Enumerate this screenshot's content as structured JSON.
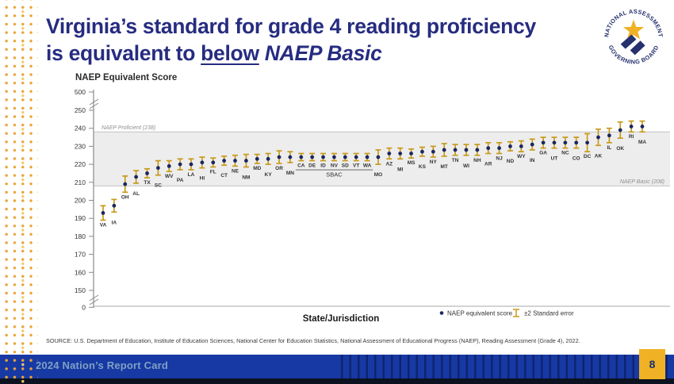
{
  "slide": {
    "title_line1": "Virginia’s standard for grade 4 reading proficiency",
    "title_line2_prefix": "is equivalent to ",
    "title_line2_underlined": "below",
    "title_line2_italic": " NAEP Basic",
    "source_text": "SOURCE: U.S. Department of Education, Institute of Education Sciences, National Center for Education Statistics, National Assessment of Educational Progress (NAEP), Reading Assessment (Grade 4), 2022.",
    "footer_text": "2024 Nation’s Report Card",
    "page_number": "8",
    "logo": {
      "top_arc": "NATIONAL ASSESSMENT",
      "bottom_arc": "GOVERNING BOARD"
    }
  },
  "colors": {
    "title_navy": "#262C80",
    "error_bar_gold": "#C79A1C",
    "point_navy": "#1C2660",
    "band_gray": "#EDEDED",
    "footer_blue": "#1739A4",
    "footer_text_blue": "#7FA0C2",
    "page_box_gold": "#F0B125",
    "dots_gold": "#EAA438"
  },
  "chart_data": {
    "type": "scatter",
    "title": "NAEP Equivalent Score",
    "ylabel": "NAEP Equivalent Score",
    "xlabel": "State/Jurisdiction",
    "y_ticks": [
      500,
      250,
      240,
      230,
      220,
      210,
      200,
      190,
      180,
      170,
      160,
      150,
      0
    ],
    "axis_breaks": true,
    "grid": false,
    "band": {
      "from": 208,
      "to": 238
    },
    "reference_lines": [
      {
        "label": "NAEP Proficient (238)",
        "value": 238
      },
      {
        "label": "NAEP Basic (208)",
        "value": 208
      }
    ],
    "legend": [
      {
        "label": "NAEP equivalent score",
        "marker": "dot"
      },
      {
        "label": "±2 Standard error",
        "marker": "error-bar"
      }
    ],
    "group_annotation": {
      "label": "SBAC",
      "states": [
        "CA",
        "DE",
        "ID",
        "NV",
        "SD",
        "VT",
        "WA"
      ]
    },
    "series": [
      {
        "state": "VA",
        "value": 193,
        "se2": 4
      },
      {
        "state": "IA",
        "value": 197,
        "se2": 3.5
      },
      {
        "state": "OH",
        "value": 209,
        "se2": 4.5
      },
      {
        "state": "AL",
        "value": 213,
        "se2": 3.5
      },
      {
        "state": "TX",
        "value": 215,
        "se2": 2.5
      },
      {
        "state": "SC",
        "value": 218,
        "se2": 4
      },
      {
        "state": "WV",
        "value": 219,
        "se2": 3
      },
      {
        "state": "PA",
        "value": 220,
        "se2": 3
      },
      {
        "state": "LA",
        "value": 220,
        "se2": 3
      },
      {
        "state": "HI",
        "value": 221,
        "se2": 3
      },
      {
        "state": "FL",
        "value": 221,
        "se2": 2.5
      },
      {
        "state": "CT",
        "value": 222,
        "se2": 2.5
      },
      {
        "state": "NE",
        "value": 222,
        "se2": 3
      },
      {
        "state": "NM",
        "value": 222,
        "se2": 3.5
      },
      {
        "state": "MD",
        "value": 223,
        "se2": 2.5
      },
      {
        "state": "KY",
        "value": 223,
        "se2": 3
      },
      {
        "state": "OR",
        "value": 224,
        "se2": 3.5
      },
      {
        "state": "MN",
        "value": 224,
        "se2": 3
      },
      {
        "state": "CA",
        "value": 224,
        "se2": 2
      },
      {
        "state": "DE",
        "value": 224,
        "se2": 2
      },
      {
        "state": "ID",
        "value": 224,
        "se2": 2
      },
      {
        "state": "NV",
        "value": 224,
        "se2": 2
      },
      {
        "state": "SD",
        "value": 224,
        "se2": 2
      },
      {
        "state": "VT",
        "value": 224,
        "se2": 2
      },
      {
        "state": "WA",
        "value": 224,
        "se2": 2
      },
      {
        "state": "MO",
        "value": 224,
        "se2": 4
      },
      {
        "state": "AZ",
        "value": 226,
        "se2": 3
      },
      {
        "state": "MI",
        "value": 226,
        "se2": 3
      },
      {
        "state": "MS",
        "value": 226,
        "se2": 2.5
      },
      {
        "state": "KS",
        "value": 227,
        "se2": 2.5
      },
      {
        "state": "NY",
        "value": 227,
        "se2": 3
      },
      {
        "state": "MT",
        "value": 228,
        "se2": 3.5
      },
      {
        "state": "TN",
        "value": 228,
        "se2": 3
      },
      {
        "state": "WI",
        "value": 228,
        "se2": 3
      },
      {
        "state": "NH",
        "value": 228,
        "se2": 3
      },
      {
        "state": "AR",
        "value": 229,
        "se2": 3
      },
      {
        "state": "NJ",
        "value": 229,
        "se2": 3
      },
      {
        "state": "ND",
        "value": 230,
        "se2": 2.5
      },
      {
        "state": "WY",
        "value": 230,
        "se2": 3
      },
      {
        "state": "IN",
        "value": 231,
        "se2": 3
      },
      {
        "state": "GA",
        "value": 232,
        "se2": 3
      },
      {
        "state": "UT",
        "value": 232,
        "se2": 3
      },
      {
        "state": "NC",
        "value": 232,
        "se2": 3
      },
      {
        "state": "CO",
        "value": 232,
        "se2": 3
      },
      {
        "state": "DC",
        "value": 232,
        "se2": 5
      },
      {
        "state": "AK",
        "value": 235,
        "se2": 4.5
      },
      {
        "state": "IL",
        "value": 236,
        "se2": 4
      },
      {
        "state": "OK",
        "value": 239,
        "se2": 4.5
      },
      {
        "state": "RI",
        "value": 241,
        "se2": 3
      },
      {
        "state": "MA",
        "value": 241,
        "se2": 3
      }
    ]
  }
}
